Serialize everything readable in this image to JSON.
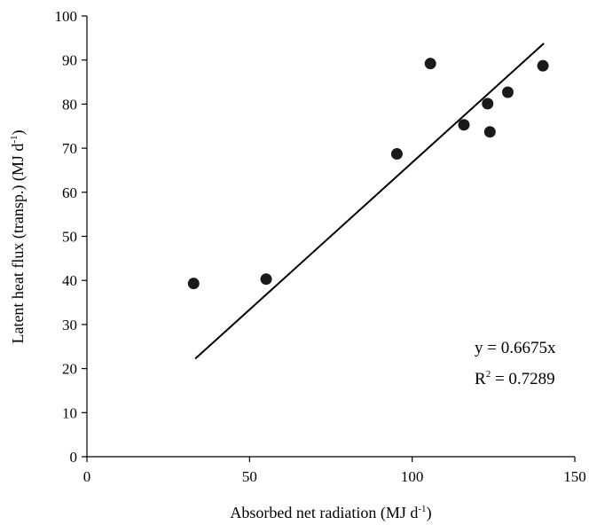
{
  "chart_data": {
    "type": "scatter",
    "title": "",
    "xlabel": "Absorbed net radiation (MJ d",
    "xlabel_sup": "-1",
    "xlabel_tail": ")",
    "ylabel": "Latent heat flux (transp.) (MJ d",
    "ylabel_sup": "-1",
    "ylabel_tail": ")",
    "xlim": [
      0,
      150
    ],
    "ylim": [
      0,
      100
    ],
    "xticks": [
      0,
      50,
      100,
      150
    ],
    "yticks": [
      0,
      10,
      20,
      30,
      40,
      50,
      60,
      70,
      80,
      90,
      100
    ],
    "grid": false,
    "series": [
      {
        "x": [
          32.8,
          55.1,
          95.3,
          105.6,
          115.9,
          123.2,
          123.9,
          129.4,
          140.2
        ],
        "y": [
          39.3,
          40.3,
          68.7,
          89.2,
          75.3,
          80.1,
          73.7,
          82.7,
          88.7
        ]
      }
    ],
    "fit_line": {
      "equation": "y = 0.6675x",
      "r2_prefix": "R",
      "r2_sup": "2",
      "r2_value": " = 0.7289",
      "slope": 0.6675,
      "x_range": [
        33.3,
        140.5
      ]
    },
    "point_color": "#1a1a1a",
    "line_color": "#000000"
  }
}
